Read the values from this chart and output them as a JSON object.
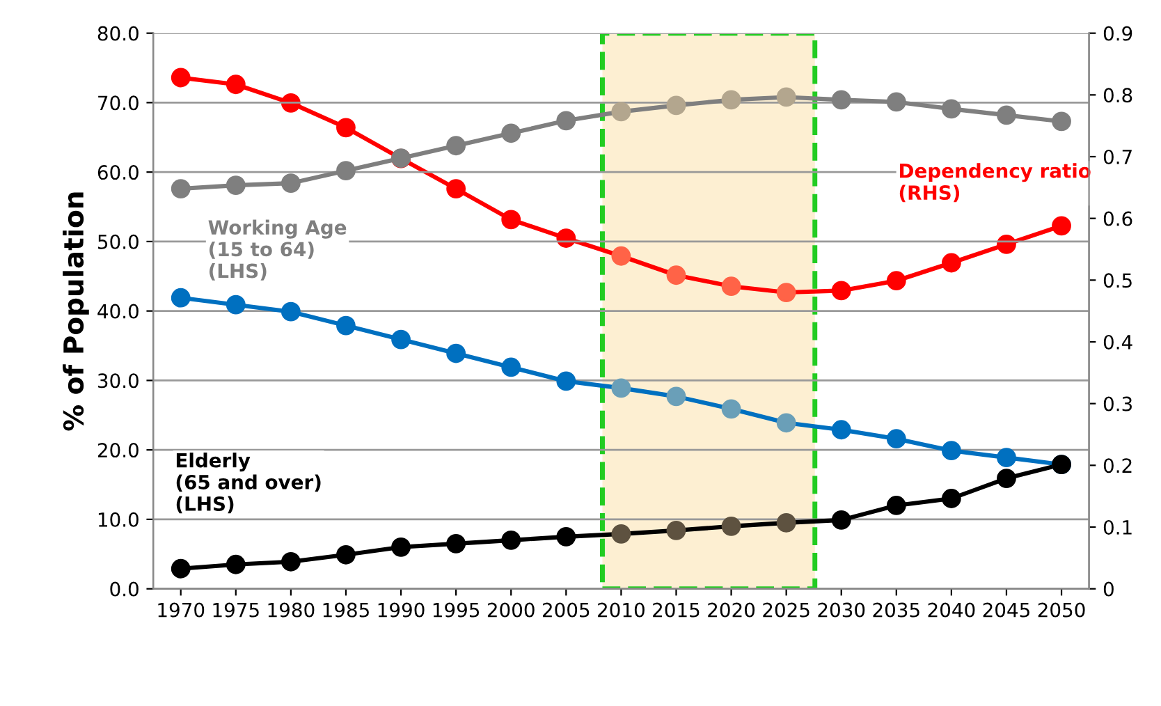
{
  "chart_data": {
    "type": "line",
    "ylabel": "% of Population",
    "x": [
      1970,
      1975,
      1980,
      1985,
      1990,
      1995,
      2000,
      2005,
      2010,
      2015,
      2020,
      2025,
      2030,
      2035,
      2040,
      2045,
      2050
    ],
    "xlim": [
      1967.5,
      2052.5
    ],
    "xticks": [
      1970,
      1975,
      1980,
      1985,
      1990,
      1995,
      2000,
      2005,
      2010,
      2015,
      2020,
      2025,
      2030,
      2035,
      2040,
      2045,
      2050
    ],
    "ylim": [
      0,
      80
    ],
    "yticks": [
      {
        "value": 0,
        "label": "0.0"
      },
      {
        "value": 10,
        "label": "10.0"
      },
      {
        "value": 20,
        "label": "20.0"
      },
      {
        "value": 30,
        "label": "30.0"
      },
      {
        "value": 40,
        "label": "40.0"
      },
      {
        "value": 50,
        "label": "50.0"
      },
      {
        "value": 60,
        "label": "60.0"
      },
      {
        "value": 70,
        "label": "70.0"
      },
      {
        "value": 80,
        "label": "80.0"
      }
    ],
    "y2lim": [
      0,
      0.9
    ],
    "y2ticks": [
      0,
      0.1,
      0.2,
      0.3,
      0.4,
      0.5,
      0.6,
      0.7,
      0.8,
      0.9
    ],
    "grid": "y",
    "legend": false,
    "marker": "circle",
    "line_style": "solid",
    "bands": [
      {
        "axis": "x",
        "from": 2008.3,
        "to": 2027.6,
        "color": "#fdefd2"
      }
    ],
    "series": [
      {
        "name": "Working Age\n(15 to 64)\n(LHS)",
        "color": "#7f7f7f",
        "colors": [
          "#7f7f7f",
          "#7f7f7f",
          "#7f7f7f",
          "#7f7f7f",
          "#7f7f7f",
          "#7f7f7f",
          "#7f7f7f",
          "#7f7f7f",
          "#b3a68e",
          "#b3a68e",
          "#b3a68e",
          "#b3a68e",
          "#7f7f7f",
          "#7f7f7f",
          "#7f7f7f",
          "#7f7f7f",
          "#7f7f7f"
        ],
        "values": [
          57.6,
          58.1,
          58.4,
          60.2,
          62.0,
          63.8,
          65.6,
          67.4,
          68.7,
          69.6,
          70.4,
          70.8,
          70.4,
          70.1,
          69.1,
          68.2,
          67.3
        ]
      },
      {
        "name": "Dependency ratio\n(RHS)",
        "axis": "y2",
        "color": "#ff0000",
        "colors": [
          "#ff0000",
          "#ff0000",
          "#ff0000",
          "#ff0000",
          "#ff0000",
          "#ff0000",
          "#ff0000",
          "#ff0000",
          "#ff6347",
          "#ff6347",
          "#ff6347",
          "#ff6347",
          "#ff0000",
          "#ff0000",
          "#ff0000",
          "#ff0000",
          "#ff0000"
        ],
        "values": [
          0.828,
          0.817,
          0.787,
          0.747,
          0.697,
          0.648,
          0.598,
          0.568,
          0.539,
          0.508,
          0.49,
          0.48,
          0.483,
          0.499,
          0.528,
          0.558,
          0.588
        ]
      },
      {
        "color": "#0070c0",
        "colors": [
          "#0070c0",
          "#0070c0",
          "#0070c0",
          "#0070c0",
          "#0070c0",
          "#0070c0",
          "#0070c0",
          "#0070c0",
          "#6a9fb8",
          "#6a9fb8",
          "#6a9fb8",
          "#6a9fb8",
          "#0070c0",
          "#0070c0",
          "#0070c0",
          "#0070c0",
          "#0070c0"
        ],
        "values": [
          41.9,
          40.9,
          39.9,
          37.9,
          35.9,
          33.9,
          31.9,
          29.9,
          28.9,
          27.7,
          25.9,
          23.9,
          22.9,
          21.6,
          19.9,
          18.9,
          17.9
        ]
      },
      {
        "name": "Elderly\n(65 and over)\n(LHS)",
        "color": "#000000",
        "colors": [
          "#000000",
          "#000000",
          "#000000",
          "#000000",
          "#000000",
          "#000000",
          "#000000",
          "#000000",
          "#5e5240",
          "#5e5240",
          "#5e5240",
          "#5e5240",
          "#000000",
          "#000000",
          "#000000",
          "#000000",
          "#000000"
        ],
        "values": [
          2.9,
          3.5,
          3.9,
          4.9,
          6.0,
          6.5,
          7.0,
          7.5,
          7.9,
          8.4,
          9.0,
          9.5,
          9.9,
          12.0,
          13.0,
          15.9,
          17.9
        ]
      }
    ]
  }
}
